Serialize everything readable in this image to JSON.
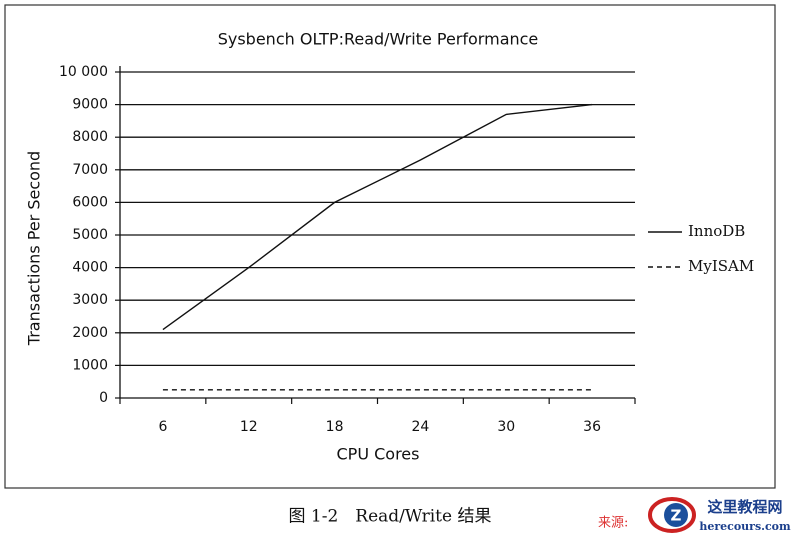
{
  "chart_data": {
    "type": "line",
    "title": "Sysbench OLTP:Read/Write Performance",
    "x_label": "CPU Cores",
    "y_label": "Transactions Per Second",
    "categories": [
      "6",
      "12",
      "18",
      "24",
      "30",
      "36"
    ],
    "series": [
      {
        "name": "InnoDB",
        "color": "#111111",
        "line_style": "solid",
        "values": [
          2100,
          4000,
          6000,
          7300,
          8700,
          9000
        ]
      },
      {
        "name": "MyISAM",
        "color": "#111111",
        "line_style": "dashed",
        "values": [
          250,
          250,
          250,
          250,
          250,
          250
        ]
      }
    ],
    "ylim": [
      0,
      10000
    ],
    "yticks": [
      0,
      1000,
      2000,
      3000,
      4000,
      5000,
      6000,
      7000,
      8000,
      9000,
      {
        "value": 10000,
        "label": "10 000"
      }
    ],
    "grid": true,
    "legend": "right"
  },
  "caption": "图 1-2　Read/Write 结果",
  "watermark": {
    "source_label": "来源:",
    "site_name": "这里教程网",
    "site_url": "herecours.com"
  }
}
